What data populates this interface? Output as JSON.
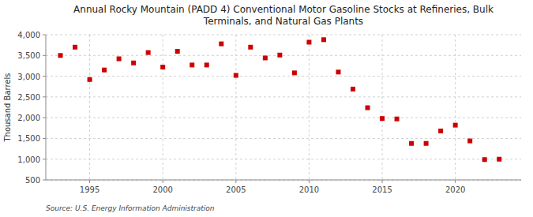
{
  "chart_data": {
    "type": "scatter",
    "title": "Annual Rocky Mountain (PADD 4) Conventional Motor Gasoline Stocks at Refineries, Bulk\nTerminals, and Natural Gas Plants",
    "ylabel": "Thousand Barrels",
    "annotations": [
      "Source: U.S. Energy Information Administration"
    ],
    "x": [
      1993,
      1994,
      1995,
      1996,
      1997,
      1998,
      1999,
      2000,
      2001,
      2002,
      2003,
      2004,
      2005,
      2006,
      2007,
      2008,
      2009,
      2010,
      2011,
      2012,
      2013,
      2014,
      2015,
      2016,
      2017,
      2018,
      2019,
      2020,
      2021,
      2022,
      2023
    ],
    "values": [
      3500,
      3700,
      2920,
      3150,
      3420,
      3320,
      3570,
      3220,
      3600,
      3270,
      3270,
      3780,
      3020,
      3700,
      3440,
      3510,
      3080,
      3820,
      3880,
      3100,
      2690,
      2240,
      1980,
      1970,
      1380,
      1380,
      1680,
      1820,
      1440,
      990,
      1000
    ],
    "color": "#cc0000",
    "marker": "square",
    "xlim": [
      1992,
      2024.5
    ],
    "xticks": [
      1995,
      2000,
      2005,
      2010,
      2015,
      2020
    ],
    "ylim": [
      500,
      4000
    ],
    "yticks": [
      500,
      {
        "value": 1000,
        "label": "1,000"
      },
      {
        "value": 1500,
        "label": "1,500"
      },
      {
        "value": 2000,
        "label": "2,000"
      },
      {
        "value": 2500,
        "label": "2,500"
      },
      {
        "value": 3000,
        "label": "3,000"
      },
      {
        "value": 3500,
        "label": "3,500"
      },
      {
        "value": 4000,
        "label": "4,000"
      }
    ],
    "grid": true
  }
}
